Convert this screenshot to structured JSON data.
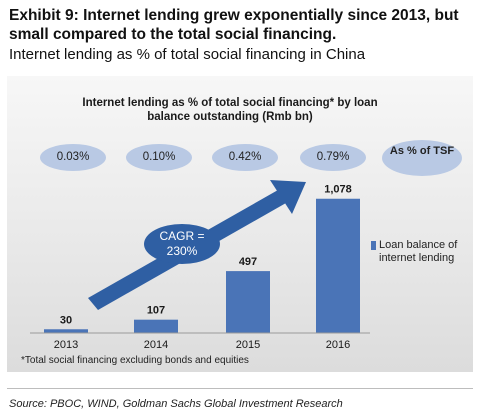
{
  "header": {
    "title": "Exhibit 9: Internet lending grew exponentially since 2013, but small compared to the total social financing.",
    "subtitle": "Internet lending as % of total social financing in China"
  },
  "chart_data": {
    "type": "bar",
    "title": "Internet lending as % of total social financing* by loan balance outstanding (Rmb bn)",
    "categories": [
      "2013",
      "2014",
      "2015",
      "2016"
    ],
    "series": [
      {
        "name": "Loan balance of internet lending",
        "values": [
          30,
          107,
          497,
          1078
        ],
        "color": "#4a74b7"
      }
    ],
    "data_labels": [
      "30",
      "107",
      "497",
      "1,078"
    ],
    "share_of_tsf": {
      "label": "As % of TSF",
      "values": [
        "0.03%",
        "0.10%",
        "0.42%",
        "0.79%"
      ]
    },
    "annotation": "CAGR = 230%",
    "ylim": [
      0,
      1100
    ],
    "grid": false,
    "legend_position": "right"
  },
  "footnote": "*Total social financing excluding bonds and equities",
  "source": "Source: PBOC, WIND, Goldman Sachs Global Investment Research"
}
